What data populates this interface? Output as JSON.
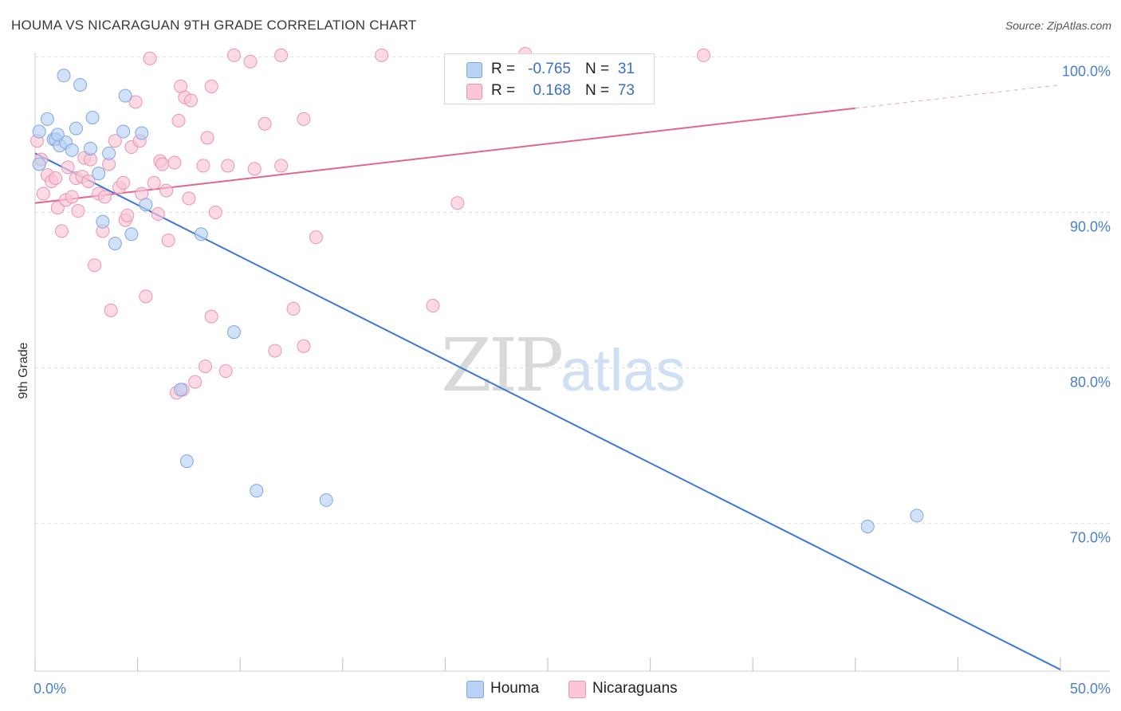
{
  "title": "HOUMA VS NICARAGUAN 9TH GRADE CORRELATION CHART",
  "source": "Source: ZipAtlas.com",
  "watermark": {
    "part1": "ZIP",
    "part2": "atlas"
  },
  "legend_stats": [
    {
      "r_label": "R =",
      "r_value": "-0.765",
      "n_label": "N =",
      "n_value": "31",
      "color": "#b9d1f3",
      "border": "#7ea7e0"
    },
    {
      "r_label": "R =",
      "r_value": "0.168",
      "n_label": "N =",
      "n_value": "73",
      "color": "#fbc6d6",
      "border": "#ec93b0"
    }
  ],
  "chart_data": {
    "type": "scatter",
    "title": "HOUMA VS NICARAGUAN 9TH GRADE CORRELATION CHART",
    "xlabel": "",
    "ylabel": "9th Grade",
    "xlim": [
      0,
      50
    ],
    "ylim": [
      60.5,
      101.3
    ],
    "x_tick_labels": [
      {
        "value": 0,
        "label": "0.0%"
      },
      {
        "value": 50,
        "label": "50.0%"
      }
    ],
    "y_tick_labels": [
      {
        "value": 100,
        "label": "100.0%"
      },
      {
        "value": 90,
        "label": "90.0%"
      },
      {
        "value": 80,
        "label": "80.0%"
      },
      {
        "value": 70,
        "label": "70.0%"
      }
    ],
    "y_gridlines": [
      100,
      90,
      80,
      70
    ],
    "grid": "horizontal dashed",
    "legend_position": "bottom-center",
    "series": [
      {
        "name": "Houma",
        "color": "#b9d1f3",
        "stroke": "#7ea7e0",
        "line_color": "#3a78d6",
        "trend": {
          "x0": 0,
          "y0": 93.8,
          "x1": 50,
          "y1": 60.6
        },
        "points": [
          [
            0.2,
            95.2
          ],
          [
            0.2,
            93.1
          ],
          [
            0.6,
            96.0
          ],
          [
            0.9,
            94.7
          ],
          [
            1.0,
            94.7
          ],
          [
            1.2,
            94.3
          ],
          [
            1.4,
            98.8
          ],
          [
            1.5,
            94.5
          ],
          [
            1.8,
            94.0
          ],
          [
            2.0,
            95.4
          ],
          [
            2.2,
            98.2
          ],
          [
            2.7,
            94.1
          ],
          [
            2.8,
            96.1
          ],
          [
            3.1,
            92.5
          ],
          [
            3.3,
            89.4
          ],
          [
            3.6,
            93.8
          ],
          [
            3.9,
            88.0
          ],
          [
            4.3,
            95.2
          ],
          [
            4.4,
            97.5
          ],
          [
            4.7,
            88.6
          ],
          [
            5.2,
            95.1
          ],
          [
            5.4,
            90.5
          ],
          [
            7.1,
            78.6
          ],
          [
            7.4,
            74.0
          ],
          [
            8.1,
            88.6
          ],
          [
            9.7,
            82.3
          ],
          [
            10.8,
            72.1
          ],
          [
            14.2,
            71.5
          ],
          [
            40.6,
            69.8
          ],
          [
            43.0,
            70.5
          ],
          [
            1.1,
            95.0
          ]
        ]
      },
      {
        "name": "Nicaraguans",
        "color": "#fbc6d6",
        "stroke": "#ec93b0",
        "line_color": "#e3668f",
        "trend": {
          "x0": 0,
          "y0": 90.6,
          "x1": 40,
          "y1": 96.7
        },
        "trend_dashed": {
          "x0": 40,
          "y0": 96.7,
          "x1": 50,
          "y1": 98.2
        },
        "points": [
          [
            0.1,
            94.6
          ],
          [
            0.3,
            93.4
          ],
          [
            0.4,
            91.2
          ],
          [
            0.6,
            92.4
          ],
          [
            0.8,
            92.0
          ],
          [
            1.0,
            92.2
          ],
          [
            1.1,
            90.3
          ],
          [
            1.3,
            88.8
          ],
          [
            1.5,
            90.8
          ],
          [
            1.6,
            92.9
          ],
          [
            1.8,
            91.0
          ],
          [
            2.0,
            92.2
          ],
          [
            2.1,
            90.1
          ],
          [
            2.3,
            92.3
          ],
          [
            2.4,
            93.5
          ],
          [
            2.6,
            92.0
          ],
          [
            2.7,
            93.4
          ],
          [
            2.9,
            86.6
          ],
          [
            3.1,
            91.2
          ],
          [
            3.3,
            88.8
          ],
          [
            3.4,
            91.0
          ],
          [
            3.6,
            93.1
          ],
          [
            3.7,
            83.7
          ],
          [
            3.9,
            94.6
          ],
          [
            4.1,
            91.6
          ],
          [
            4.3,
            91.9
          ],
          [
            4.4,
            89.5
          ],
          [
            4.5,
            89.8
          ],
          [
            4.7,
            94.2
          ],
          [
            4.9,
            97.1
          ],
          [
            5.1,
            94.6
          ],
          [
            5.2,
            91.2
          ],
          [
            5.4,
            84.6
          ],
          [
            5.6,
            99.9
          ],
          [
            5.8,
            91.9
          ],
          [
            6.0,
            89.9
          ],
          [
            6.1,
            93.3
          ],
          [
            6.2,
            93.1
          ],
          [
            6.4,
            91.4
          ],
          [
            6.5,
            88.2
          ],
          [
            6.8,
            93.2
          ],
          [
            6.9,
            78.4
          ],
          [
            7.0,
            95.9
          ],
          [
            7.1,
            98.1
          ],
          [
            7.2,
            78.6
          ],
          [
            7.3,
            97.4
          ],
          [
            7.5,
            90.9
          ],
          [
            7.6,
            97.2
          ],
          [
            7.8,
            79.1
          ],
          [
            8.2,
            93.0
          ],
          [
            8.3,
            80.1
          ],
          [
            8.4,
            94.8
          ],
          [
            8.6,
            83.3
          ],
          [
            8.6,
            98.1
          ],
          [
            8.8,
            90.0
          ],
          [
            9.3,
            79.8
          ],
          [
            9.4,
            93.0
          ],
          [
            9.7,
            100.1
          ],
          [
            10.5,
            99.7
          ],
          [
            10.7,
            92.8
          ],
          [
            11.2,
            95.7
          ],
          [
            11.7,
            81.1
          ],
          [
            12.0,
            93.0
          ],
          [
            12.0,
            100.1
          ],
          [
            12.6,
            83.8
          ],
          [
            13.1,
            81.4
          ],
          [
            13.1,
            96.0
          ],
          [
            13.7,
            88.4
          ],
          [
            16.9,
            100.1
          ],
          [
            19.4,
            84.0
          ],
          [
            20.6,
            90.6
          ],
          [
            23.9,
            100.2
          ],
          [
            32.6,
            100.1
          ]
        ]
      }
    ]
  }
}
